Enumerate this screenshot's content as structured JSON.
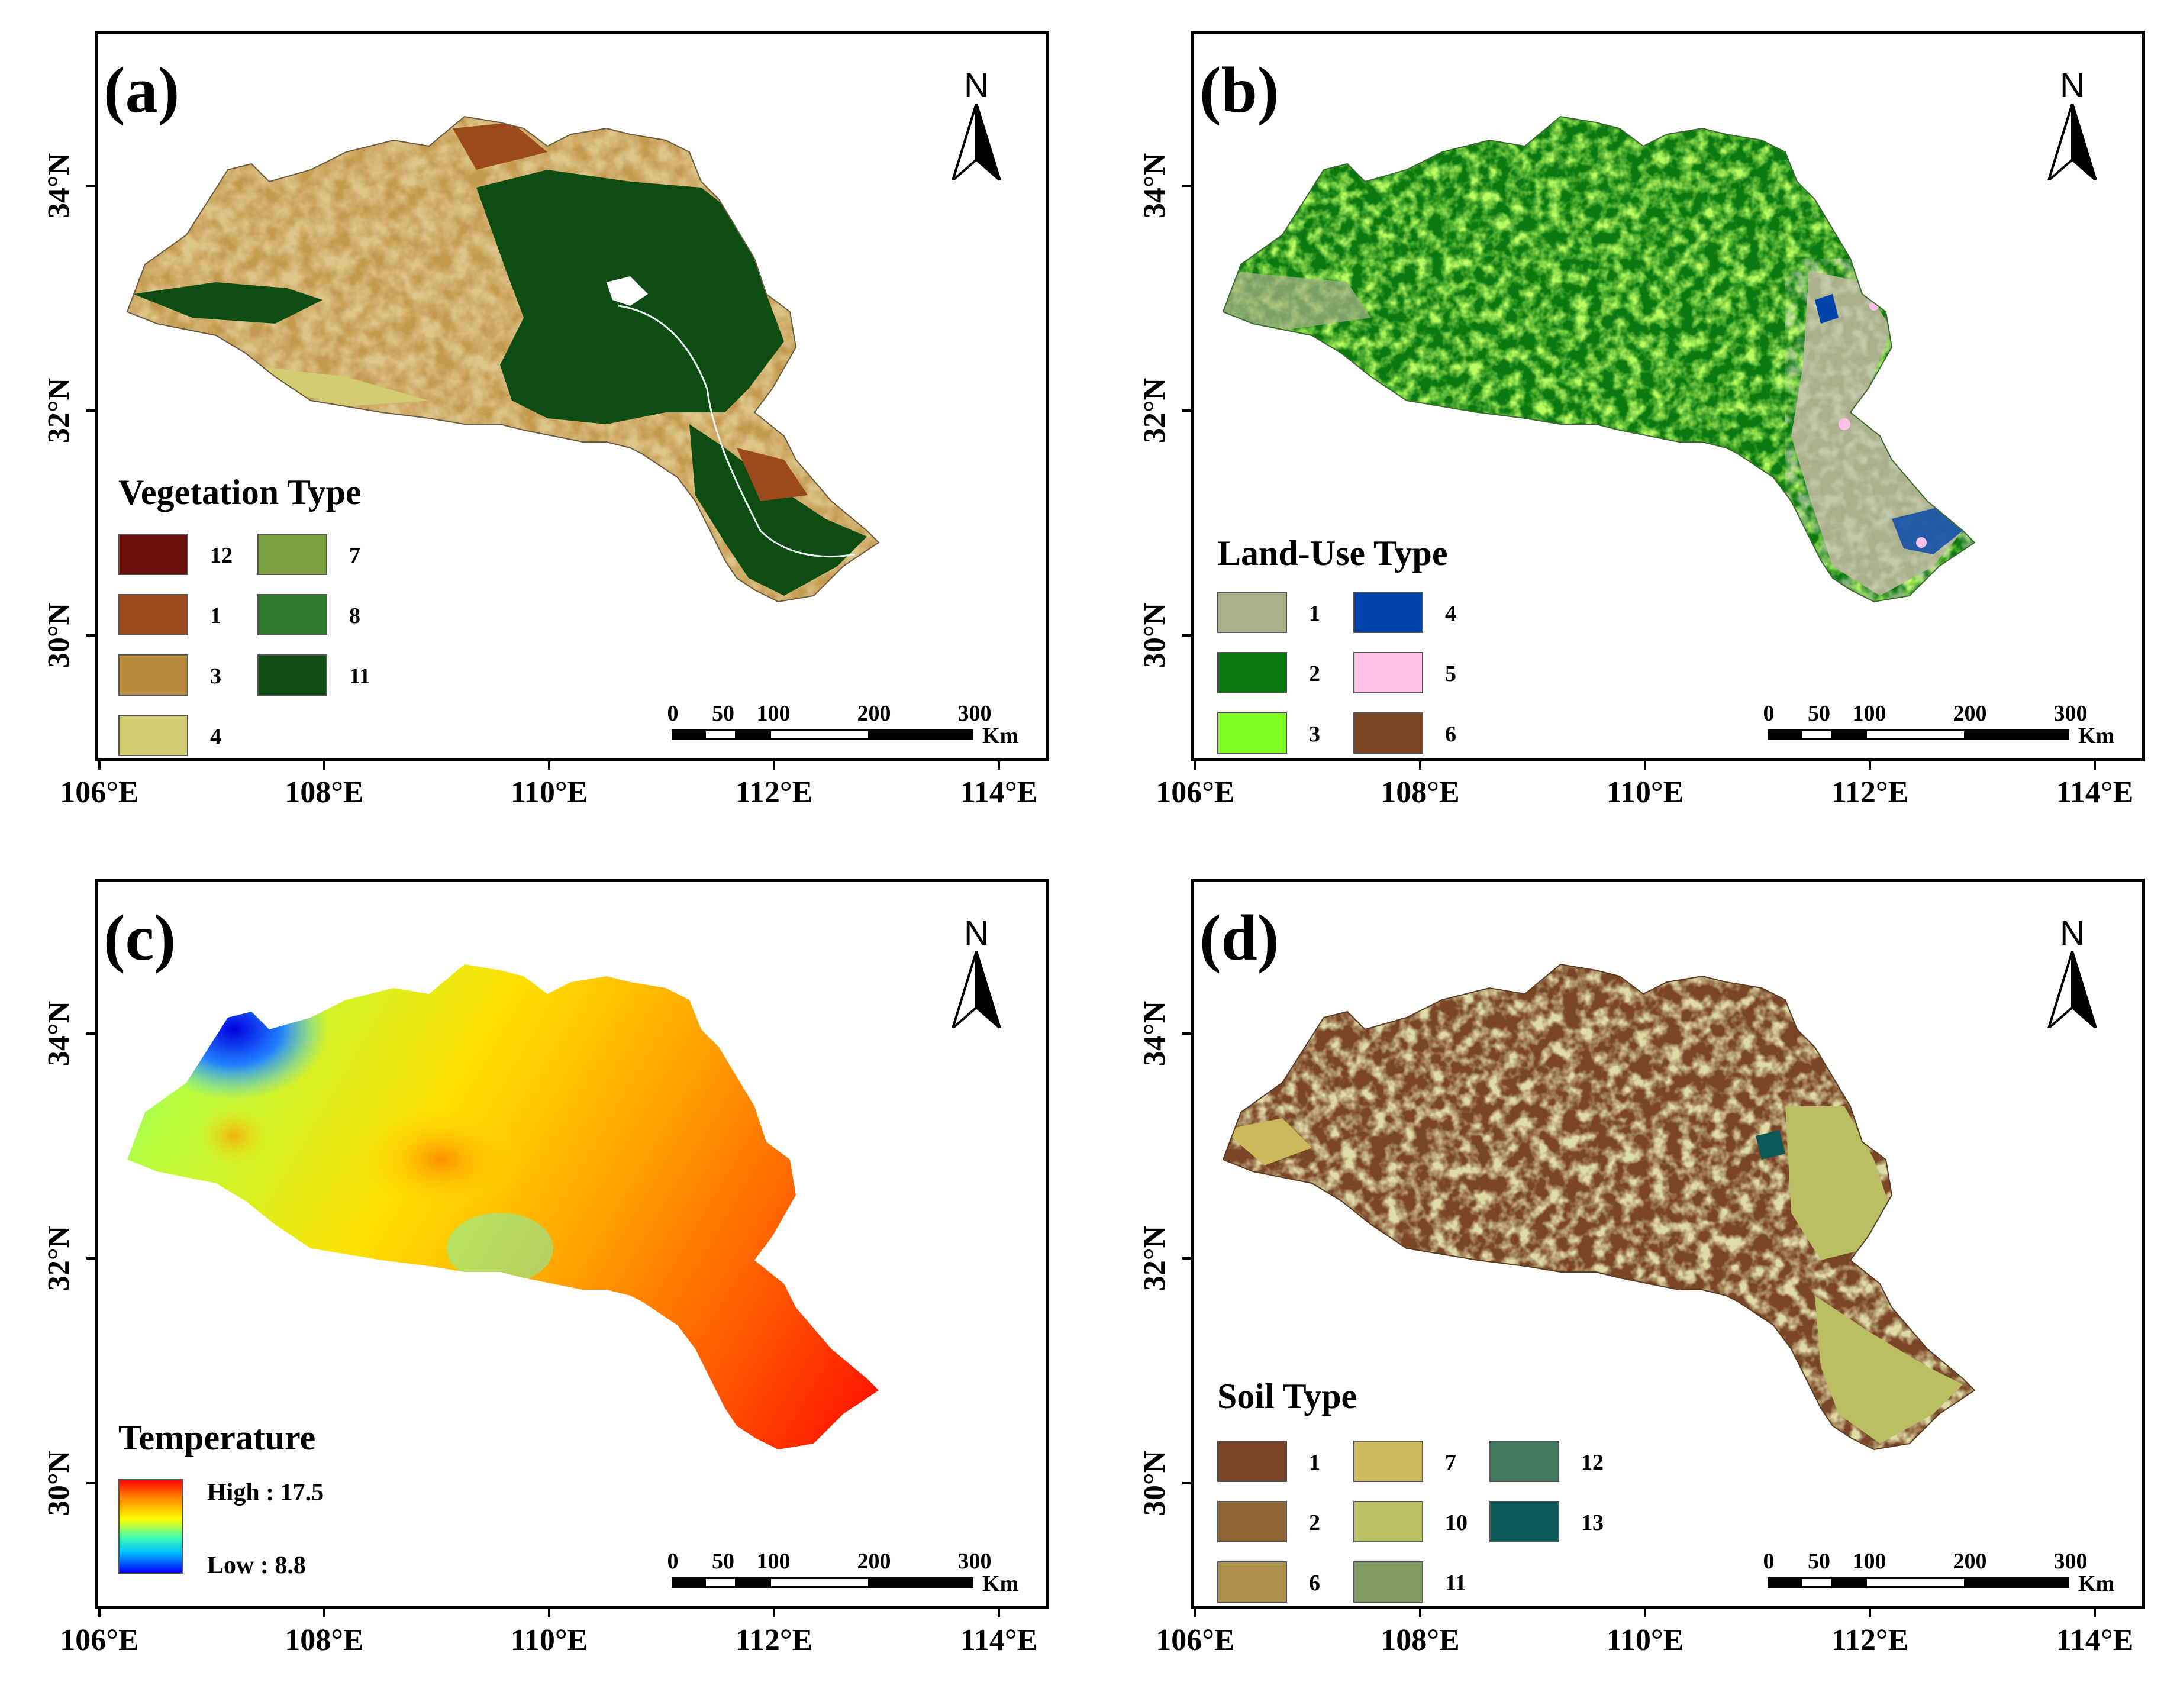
{
  "panels": {
    "a": {
      "label": "(a)",
      "legend_title": "Vegetation Type",
      "legend_items": [
        {
          "code": "12",
          "color": "#6b0f0a"
        },
        {
          "code": "1",
          "color": "#9a4a1c"
        },
        {
          "code": "3",
          "color": "#b8883a"
        },
        {
          "code": "4",
          "color": "#d2cc70"
        },
        {
          "code": "7",
          "color": "#7aa040"
        },
        {
          "code": "8",
          "color": "#2e7a2a"
        },
        {
          "code": "11",
          "color": "#0d4d12"
        }
      ]
    },
    "b": {
      "label": "(b)",
      "legend_title": "Land-Use Type",
      "legend_items": [
        {
          "code": "1",
          "color": "#aab08a"
        },
        {
          "code": "2",
          "color": "#0a7a10"
        },
        {
          "code": "3",
          "color": "#7fff20"
        },
        {
          "code": "4",
          "color": "#0044aa"
        },
        {
          "code": "5",
          "color": "#ffc0e8"
        },
        {
          "code": "6",
          "color": "#7a4520"
        }
      ]
    },
    "c": {
      "label": "(c)",
      "legend_title": "Temperature",
      "high_label": "High : 17.5",
      "low_label": "Low : 8.8",
      "high_value": 17.5,
      "low_value": 8.8
    },
    "d": {
      "label": "(d)",
      "legend_title": "Soil Type",
      "legend_items": [
        {
          "code": "1",
          "color": "#7a4526"
        },
        {
          "code": "2",
          "color": "#8f6535"
        },
        {
          "code": "6",
          "color": "#ad8f4a"
        },
        {
          "code": "7",
          "color": "#cbb95a"
        },
        {
          "code": "10",
          "color": "#b9bf62"
        },
        {
          "code": "11",
          "color": "#7f9a60"
        },
        {
          "code": "12",
          "color": "#3f7a5f"
        },
        {
          "code": "13",
          "color": "#0c5a58"
        }
      ]
    }
  },
  "north_label": "N",
  "scale_bar": {
    "ticks": [
      "0",
      "50",
      "100",
      "200",
      "300"
    ],
    "unit": "Km"
  },
  "x_axis_labels": [
    "106°E",
    "108°E",
    "110°E",
    "112°E",
    "114°E"
  ],
  "y_axis_labels": [
    "34°N",
    "32°N",
    "30°N"
  ]
}
